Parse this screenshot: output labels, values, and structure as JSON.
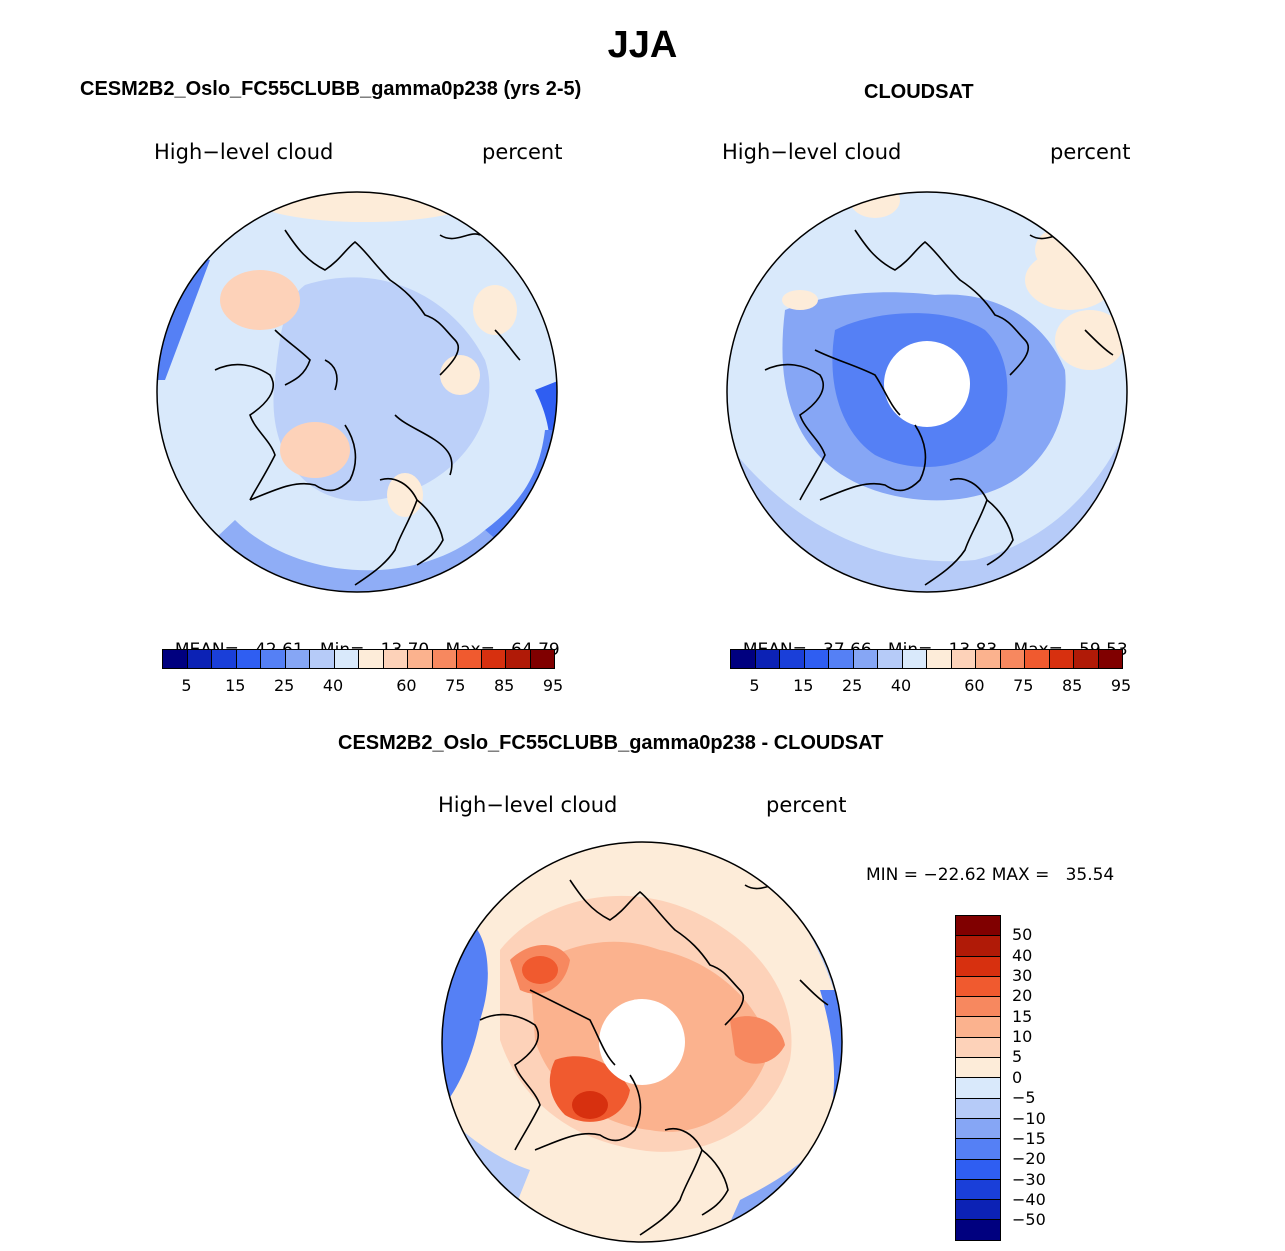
{
  "season": "JJA",
  "colors": {
    "abs_scale": [
      "#00007f",
      "#0c22b5",
      "#1a3fd9",
      "#2f5ef2",
      "#5580f5",
      "#86a6f5",
      "#b6cbf8",
      "#d9e9fb",
      "#fdecd9",
      "#fdd2b9",
      "#fbb28e",
      "#f7885f",
      "#f05a2f",
      "#d7300f",
      "#b01a07",
      "#800000"
    ],
    "diff_scale": [
      "#800000",
      "#b01a07",
      "#d7300f",
      "#f05a2f",
      "#f7885f",
      "#fbb28e",
      "#fdd2b9",
      "#fdecd9",
      "#d9e9fb",
      "#b6cbf8",
      "#86a6f5",
      "#5580f5",
      "#2f5ef2",
      "#1a3fd9",
      "#0c22b5",
      "#00007f"
    ],
    "coast": "#000000",
    "map_bg": "#d9e9fb"
  },
  "panels": {
    "model": {
      "title": "CESM2B2_Oslo_FC55CLUBB_gamma0p238 (yrs 2-5)",
      "variable": "High−level cloud",
      "units": "percent",
      "mean_label": "MEAN=",
      "mean_value": "42.61",
      "min_label": "Min=",
      "min_value": "13.70",
      "max_label": "Max=",
      "max_value": "64.79",
      "ticks": [
        "5",
        "15",
        "25",
        "40",
        "60",
        "75",
        "85",
        "95"
      ]
    },
    "obs": {
      "title": "CLOUDSAT",
      "variable": "High−level cloud",
      "units": "percent",
      "mean_label": "MEAN=",
      "mean_value": "37.66",
      "min_label": "Min=",
      "min_value": "13.83",
      "max_label": "Max=",
      "max_value": "59.53",
      "ticks": [
        "5",
        "15",
        "25",
        "40",
        "60",
        "75",
        "85",
        "95"
      ]
    },
    "diff": {
      "title": "CESM2B2_Oslo_FC55CLUBB_gamma0p238 - CLOUDSAT",
      "variable": "High−level cloud",
      "units": "percent",
      "minmax": "MIN = −22.62 MAX =   35.54",
      "ticks": [
        "50",
        "40",
        "30",
        "20",
        "15",
        "10",
        "5",
        "0",
        "−5",
        "−10",
        "−15",
        "−20",
        "−30",
        "−40",
        "−50"
      ]
    }
  }
}
